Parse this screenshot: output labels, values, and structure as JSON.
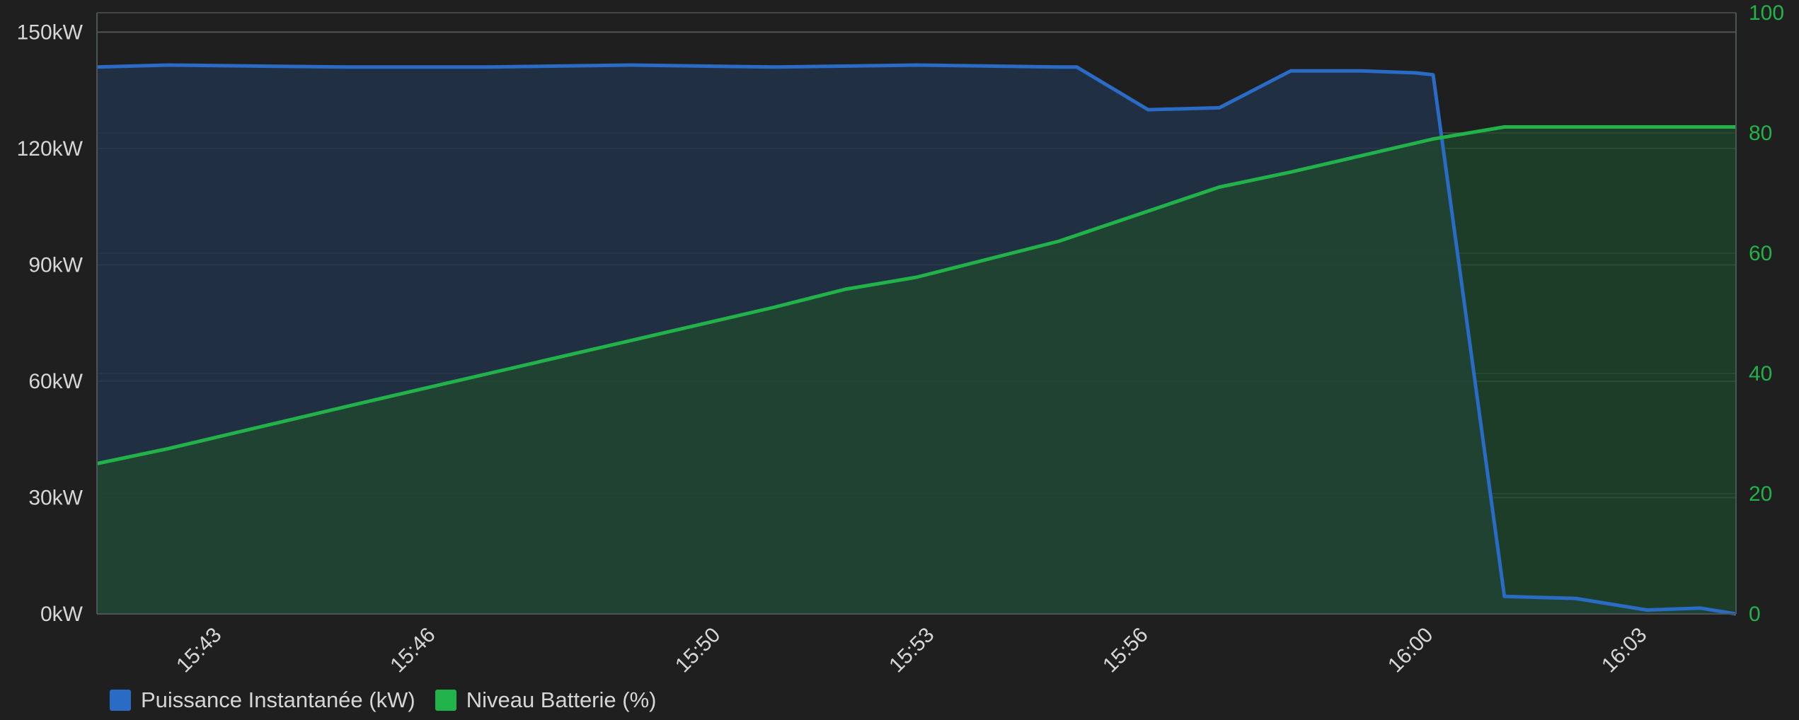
{
  "colors": {
    "background": "#1f1f1f",
    "grid": "#4d5456",
    "power_line": "#2a6bc5",
    "power_fill": "#22324a",
    "battery_line": "#21b24a",
    "battery_fill": "#1f4a2c",
    "left_axis_text": "#d6d6d6",
    "right_axis_text": "#21b24a",
    "x_axis_text": "#d6d6d6"
  },
  "chart_data": {
    "type": "area",
    "title": "",
    "xlabel": "",
    "ylabel": "",
    "x_ticks": [
      "15:43",
      "15:46",
      "15:50",
      "15:53",
      "15:56",
      "16:00",
      "16:03"
    ],
    "x_tick_minutes": [
      943,
      946,
      950,
      953,
      956,
      960,
      963
    ],
    "x_range_minutes": [
      941.5,
      964.5
    ],
    "y_left": {
      "ticks": [
        "0kW",
        "30kW",
        "60kW",
        "90kW",
        "120kW",
        "150kW"
      ],
      "tick_values": [
        0,
        30,
        60,
        90,
        120,
        150
      ],
      "range": [
        0,
        155
      ],
      "unit": "kW"
    },
    "y_right": {
      "ticks": [
        "0",
        "20",
        "40",
        "60",
        "80",
        "100"
      ],
      "tick_values": [
        0,
        20,
        40,
        60,
        80,
        100
      ],
      "range": [
        0,
        100
      ]
    },
    "grid": true,
    "legend_position": "bottom-left",
    "series": [
      {
        "name": "Puissance Instantanée (kW)",
        "axis": "left",
        "color": "#2a6bc5",
        "points": [
          {
            "t": "15:41:30",
            "v": 141
          },
          {
            "t": "15:42:30",
            "v": 141.5
          },
          {
            "t": "15:45",
            "v": 141
          },
          {
            "t": "15:47",
            "v": 141
          },
          {
            "t": "15:49",
            "v": 141.5
          },
          {
            "t": "15:51",
            "v": 141
          },
          {
            "t": "15:53",
            "v": 141.5
          },
          {
            "t": "15:55",
            "v": 141
          },
          {
            "t": "15:55:15",
            "v": 141
          },
          {
            "t": "15:56:15",
            "v": 130
          },
          {
            "t": "15:57:15",
            "v": 130.5
          },
          {
            "t": "15:58:15",
            "v": 140
          },
          {
            "t": "15:59:15",
            "v": 140
          },
          {
            "t": "16:00",
            "v": 139.5
          },
          {
            "t": "16:00:15",
            "v": 139
          },
          {
            "t": "16:01:15",
            "v": 4.5
          },
          {
            "t": "16:02:15",
            "v": 4
          },
          {
            "t": "16:03:15",
            "v": 1
          },
          {
            "t": "16:04",
            "v": 1.5
          },
          {
            "t": "16:04:30",
            "v": 0
          }
        ]
      },
      {
        "name": "Niveau Batterie (%)",
        "axis": "right",
        "color": "#21b24a",
        "points": [
          {
            "t": "15:41:30",
            "v": 25
          },
          {
            "t": "15:42:30",
            "v": 27.5
          },
          {
            "t": "15:45",
            "v": 34.5
          },
          {
            "t": "15:47",
            "v": 40
          },
          {
            "t": "15:49",
            "v": 45.5
          },
          {
            "t": "15:51",
            "v": 51
          },
          {
            "t": "15:52",
            "v": 54
          },
          {
            "t": "15:53",
            "v": 56
          },
          {
            "t": "15:55",
            "v": 62
          },
          {
            "t": "15:57:15",
            "v": 71
          },
          {
            "t": "15:58:15",
            "v": 73.5
          },
          {
            "t": "16:00:15",
            "v": 79
          },
          {
            "t": "16:01:15",
            "v": 81
          },
          {
            "t": "16:04:30",
            "v": 81
          }
        ]
      }
    ]
  }
}
